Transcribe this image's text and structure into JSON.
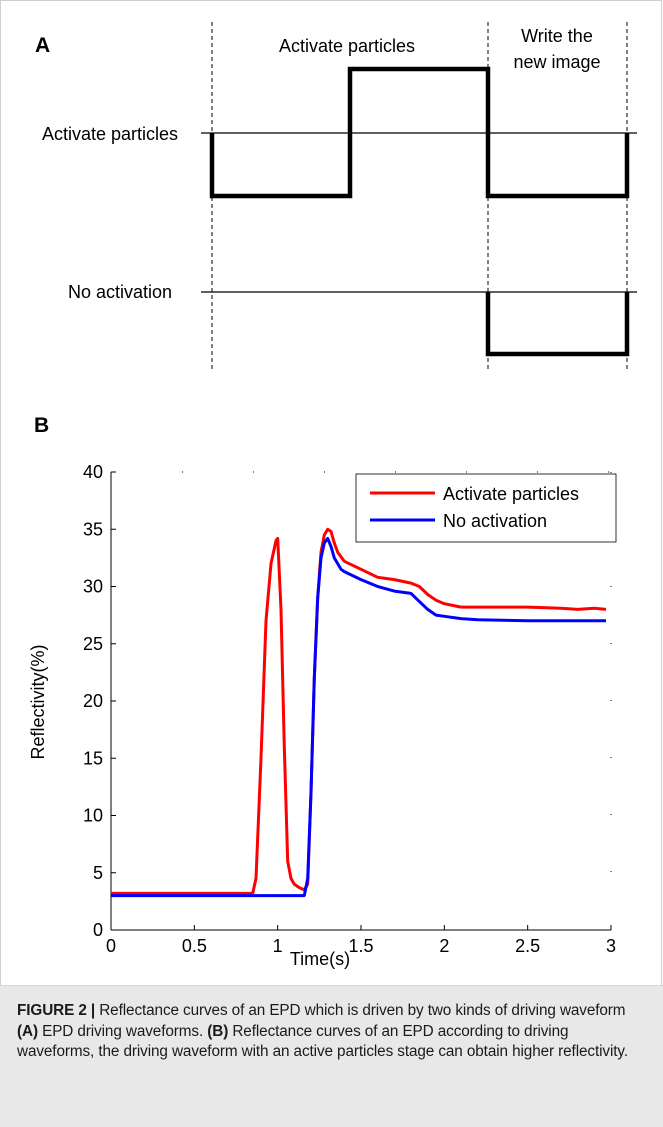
{
  "panel_a": {
    "label": "A",
    "top_label": "Activate particles",
    "write_label_line1": "Write the",
    "write_label_line2": "new image",
    "row1_label": "Activate particles",
    "row2_label": "No activation"
  },
  "panel_b": {
    "label": "B"
  },
  "chart_data": [
    {
      "type": "diagram-waveform",
      "stages": [
        "Activate particles",
        "Write the new image"
      ],
      "waveforms": [
        {
          "name": "Activate particles",
          "levels": [
            {
              "stage": 0,
              "level": -1
            },
            {
              "stage": 1,
              "level": 1
            },
            {
              "stage": 2,
              "level": -1
            }
          ]
        },
        {
          "name": "No activation",
          "levels": [
            {
              "stage": 0,
              "level": 0
            },
            {
              "stage": 1,
              "level": 0
            },
            {
              "stage": 2,
              "level": -1
            }
          ]
        }
      ]
    },
    {
      "type": "line",
      "title": "",
      "xlabel": "Time(s)",
      "ylabel": "Reflectivity(%)",
      "xlim": [
        0,
        3
      ],
      "ylim": [
        0,
        40
      ],
      "xticks": [
        0,
        0.5,
        1,
        1.5,
        2,
        2.5,
        3
      ],
      "xtick_labels": [
        "0",
        "0.5",
        "1",
        "1.5",
        "2",
        "2.5",
        "3"
      ],
      "yticks": [
        0,
        5,
        10,
        15,
        20,
        25,
        30,
        35,
        40
      ],
      "ytick_labels": [
        "0",
        "5",
        "10",
        "15",
        "20",
        "25",
        "30",
        "35",
        "40"
      ],
      "legend_position": "top-right",
      "series": [
        {
          "name": "Activate particles",
          "color": "#ff0000",
          "x": [
            0,
            0.85,
            0.87,
            0.9,
            0.93,
            0.96,
            0.99,
            1.0,
            1.02,
            1.04,
            1.06,
            1.08,
            1.1,
            1.13,
            1.16,
            1.18,
            1.2,
            1.22,
            1.24,
            1.26,
            1.28,
            1.3,
            1.32,
            1.34,
            1.36,
            1.38,
            1.4,
            1.5,
            1.6,
            1.7,
            1.8,
            1.85,
            1.9,
            1.95,
            2.0,
            2.1,
            2.2,
            2.5,
            2.7,
            2.8,
            2.9,
            2.97
          ],
          "y": [
            3.2,
            3.2,
            4.5,
            15,
            27,
            32,
            34,
            34.2,
            28,
            16,
            6,
            4.5,
            4,
            3.7,
            3.5,
            4,
            12,
            22,
            29,
            33,
            34.5,
            35,
            34.8,
            33.8,
            33,
            32.6,
            32.2,
            31.5,
            30.8,
            30.6,
            30.3,
            30.0,
            29.3,
            28.8,
            28.5,
            28.2,
            28.2,
            28.2,
            28.1,
            28.0,
            28.1,
            28.0
          ]
        },
        {
          "name": "No activation",
          "color": "#0000ff",
          "x": [
            0,
            0.5,
            1.0,
            1.16,
            1.18,
            1.2,
            1.22,
            1.24,
            1.26,
            1.28,
            1.3,
            1.32,
            1.34,
            1.36,
            1.38,
            1.4,
            1.5,
            1.6,
            1.7,
            1.8,
            1.85,
            1.9,
            1.95,
            2.0,
            2.1,
            2.2,
            2.5,
            2.97
          ],
          "y": [
            3.0,
            3.0,
            3.0,
            3.0,
            4.5,
            12,
            22,
            29,
            32.5,
            33.8,
            34.2,
            33.5,
            32.5,
            32,
            31.5,
            31.3,
            30.6,
            30.0,
            29.6,
            29.4,
            28.7,
            28.0,
            27.5,
            27.4,
            27.2,
            27.1,
            27.0,
            27.0
          ]
        }
      ]
    }
  ],
  "caption": {
    "label": "FIGURE 2 |",
    "text": " Reflectance curves of an EPD which is driven by two kinds of driving waveform ",
    "a_label": "(A)",
    "a_text": " EPD driving waveforms. ",
    "b_label": "(B)",
    "b_text": " Reflectance curves of an EPD according to driving waveforms, the driving waveform with an active particles stage can obtain higher reflectivity."
  }
}
